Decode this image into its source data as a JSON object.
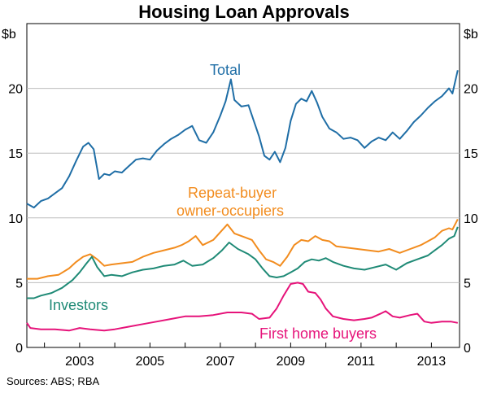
{
  "chart_data": {
    "type": "line",
    "title": "Housing Loan Approvals",
    "unit_left": "$b",
    "unit_right": "$b",
    "ylim": [
      0,
      25
    ],
    "yticks": [
      0,
      5,
      10,
      15,
      20
    ],
    "xlim": [
      2001.5,
      2013.8
    ],
    "xticks": [
      2003,
      2005,
      2007,
      2009,
      2011,
      2013
    ],
    "grid": true,
    "series": [
      {
        "name": "Total",
        "color": "#1f6ea6",
        "points": [
          [
            2001.5,
            11.1
          ],
          [
            2001.7,
            10.8
          ],
          [
            2001.9,
            11.3
          ],
          [
            2002.1,
            11.5
          ],
          [
            2002.3,
            11.9
          ],
          [
            2002.5,
            12.3
          ],
          [
            2002.7,
            13.2
          ],
          [
            2002.9,
            14.4
          ],
          [
            2003.1,
            15.5
          ],
          [
            2003.25,
            15.8
          ],
          [
            2003.4,
            15.3
          ],
          [
            2003.55,
            13.0
          ],
          [
            2003.7,
            13.4
          ],
          [
            2003.85,
            13.3
          ],
          [
            2004.0,
            13.6
          ],
          [
            2004.2,
            13.5
          ],
          [
            2004.4,
            14.0
          ],
          [
            2004.6,
            14.5
          ],
          [
            2004.8,
            14.6
          ],
          [
            2005.0,
            14.5
          ],
          [
            2005.2,
            15.2
          ],
          [
            2005.4,
            15.7
          ],
          [
            2005.6,
            16.1
          ],
          [
            2005.8,
            16.4
          ],
          [
            2006.0,
            16.8
          ],
          [
            2006.2,
            17.1
          ],
          [
            2006.4,
            16.0
          ],
          [
            2006.6,
            15.8
          ],
          [
            2006.8,
            16.6
          ],
          [
            2007.0,
            17.9
          ],
          [
            2007.15,
            19.0
          ],
          [
            2007.3,
            20.7
          ],
          [
            2007.4,
            19.1
          ],
          [
            2007.6,
            18.6
          ],
          [
            2007.8,
            18.7
          ],
          [
            2007.95,
            17.5
          ],
          [
            2008.1,
            16.3
          ],
          [
            2008.25,
            14.8
          ],
          [
            2008.4,
            14.5
          ],
          [
            2008.55,
            15.1
          ],
          [
            2008.7,
            14.3
          ],
          [
            2008.85,
            15.4
          ],
          [
            2009.0,
            17.5
          ],
          [
            2009.15,
            18.8
          ],
          [
            2009.3,
            19.2
          ],
          [
            2009.45,
            19.0
          ],
          [
            2009.6,
            19.8
          ],
          [
            2009.75,
            18.9
          ],
          [
            2009.9,
            17.8
          ],
          [
            2010.1,
            16.9
          ],
          [
            2010.3,
            16.6
          ],
          [
            2010.5,
            16.1
          ],
          [
            2010.7,
            16.2
          ],
          [
            2010.9,
            16.0
          ],
          [
            2011.1,
            15.4
          ],
          [
            2011.3,
            15.9
          ],
          [
            2011.5,
            16.2
          ],
          [
            2011.7,
            16.0
          ],
          [
            2011.9,
            16.6
          ],
          [
            2012.1,
            16.1
          ],
          [
            2012.3,
            16.7
          ],
          [
            2012.5,
            17.4
          ],
          [
            2012.7,
            17.9
          ],
          [
            2012.9,
            18.5
          ],
          [
            2013.1,
            19.0
          ],
          [
            2013.3,
            19.4
          ],
          [
            2013.5,
            20.0
          ],
          [
            2013.6,
            19.6
          ],
          [
            2013.75,
            21.4
          ]
        ]
      },
      {
        "name": "Repeat-buyer owner-occupiers",
        "color": "#f28c1e",
        "points": [
          [
            2001.5,
            5.3
          ],
          [
            2001.8,
            5.3
          ],
          [
            2002.1,
            5.5
          ],
          [
            2002.4,
            5.6
          ],
          [
            2002.7,
            6.1
          ],
          [
            2002.9,
            6.6
          ],
          [
            2003.1,
            7.0
          ],
          [
            2003.3,
            7.2
          ],
          [
            2003.5,
            6.8
          ],
          [
            2003.7,
            6.3
          ],
          [
            2003.9,
            6.4
          ],
          [
            2004.2,
            6.5
          ],
          [
            2004.5,
            6.6
          ],
          [
            2004.8,
            7.0
          ],
          [
            2005.1,
            7.3
          ],
          [
            2005.4,
            7.5
          ],
          [
            2005.7,
            7.7
          ],
          [
            2005.9,
            7.9
          ],
          [
            2006.1,
            8.2
          ],
          [
            2006.3,
            8.6
          ],
          [
            2006.5,
            7.9
          ],
          [
            2006.8,
            8.3
          ],
          [
            2007.0,
            8.9
          ],
          [
            2007.2,
            9.5
          ],
          [
            2007.4,
            8.8
          ],
          [
            2007.7,
            8.5
          ],
          [
            2007.9,
            8.3
          ],
          [
            2008.1,
            7.5
          ],
          [
            2008.3,
            6.8
          ],
          [
            2008.5,
            6.6
          ],
          [
            2008.7,
            6.3
          ],
          [
            2008.9,
            7.0
          ],
          [
            2009.1,
            7.9
          ],
          [
            2009.3,
            8.3
          ],
          [
            2009.5,
            8.2
          ],
          [
            2009.7,
            8.6
          ],
          [
            2009.9,
            8.3
          ],
          [
            2010.1,
            8.2
          ],
          [
            2010.3,
            7.8
          ],
          [
            2010.6,
            7.7
          ],
          [
            2010.9,
            7.6
          ],
          [
            2011.2,
            7.5
          ],
          [
            2011.5,
            7.4
          ],
          [
            2011.8,
            7.6
          ],
          [
            2012.1,
            7.3
          ],
          [
            2012.4,
            7.6
          ],
          [
            2012.7,
            7.9
          ],
          [
            2012.9,
            8.2
          ],
          [
            2013.1,
            8.5
          ],
          [
            2013.3,
            9.0
          ],
          [
            2013.5,
            9.2
          ],
          [
            2013.6,
            9.1
          ],
          [
            2013.75,
            9.9
          ]
        ]
      },
      {
        "name": "Investors",
        "color": "#1f8a76",
        "points": [
          [
            2001.5,
            3.8
          ],
          [
            2001.7,
            3.8
          ],
          [
            2001.9,
            4.0
          ],
          [
            2002.2,
            4.2
          ],
          [
            2002.5,
            4.6
          ],
          [
            2002.8,
            5.2
          ],
          [
            2003.0,
            5.8
          ],
          [
            2003.2,
            6.5
          ],
          [
            2003.35,
            7.0
          ],
          [
            2003.5,
            6.2
          ],
          [
            2003.7,
            5.5
          ],
          [
            2003.9,
            5.6
          ],
          [
            2004.2,
            5.5
          ],
          [
            2004.5,
            5.8
          ],
          [
            2004.8,
            6.0
          ],
          [
            2005.1,
            6.1
          ],
          [
            2005.4,
            6.3
          ],
          [
            2005.7,
            6.4
          ],
          [
            2005.95,
            6.7
          ],
          [
            2006.2,
            6.3
          ],
          [
            2006.5,
            6.4
          ],
          [
            2006.8,
            6.9
          ],
          [
            2007.05,
            7.5
          ],
          [
            2007.25,
            8.1
          ],
          [
            2007.5,
            7.6
          ],
          [
            2007.8,
            7.2
          ],
          [
            2008.0,
            6.8
          ],
          [
            2008.2,
            6.1
          ],
          [
            2008.4,
            5.5
          ],
          [
            2008.6,
            5.4
          ],
          [
            2008.8,
            5.5
          ],
          [
            2009.0,
            5.8
          ],
          [
            2009.2,
            6.1
          ],
          [
            2009.4,
            6.6
          ],
          [
            2009.6,
            6.8
          ],
          [
            2009.8,
            6.7
          ],
          [
            2010.0,
            6.9
          ],
          [
            2010.2,
            6.6
          ],
          [
            2010.5,
            6.3
          ],
          [
            2010.8,
            6.1
          ],
          [
            2011.1,
            6.0
          ],
          [
            2011.4,
            6.2
          ],
          [
            2011.7,
            6.4
          ],
          [
            2012.0,
            6.0
          ],
          [
            2012.3,
            6.5
          ],
          [
            2012.6,
            6.8
          ],
          [
            2012.9,
            7.1
          ],
          [
            2013.1,
            7.5
          ],
          [
            2013.3,
            7.9
          ],
          [
            2013.5,
            8.4
          ],
          [
            2013.65,
            8.6
          ],
          [
            2013.75,
            9.3
          ]
        ]
      },
      {
        "name": "First home buyers",
        "color": "#e6137a",
        "points": [
          [
            2001.5,
            1.9
          ],
          [
            2001.6,
            1.5
          ],
          [
            2001.9,
            1.4
          ],
          [
            2002.3,
            1.4
          ],
          [
            2002.7,
            1.3
          ],
          [
            2003.0,
            1.5
          ],
          [
            2003.3,
            1.4
          ],
          [
            2003.7,
            1.3
          ],
          [
            2004.0,
            1.4
          ],
          [
            2004.4,
            1.6
          ],
          [
            2004.8,
            1.8
          ],
          [
            2005.2,
            2.0
          ],
          [
            2005.6,
            2.2
          ],
          [
            2006.0,
            2.4
          ],
          [
            2006.4,
            2.4
          ],
          [
            2006.8,
            2.5
          ],
          [
            2007.2,
            2.7
          ],
          [
            2007.6,
            2.7
          ],
          [
            2007.9,
            2.6
          ],
          [
            2008.1,
            2.2
          ],
          [
            2008.4,
            2.3
          ],
          [
            2008.6,
            3.0
          ],
          [
            2008.8,
            4.0
          ],
          [
            2009.0,
            4.9
          ],
          [
            2009.2,
            5.0
          ],
          [
            2009.35,
            4.9
          ],
          [
            2009.5,
            4.3
          ],
          [
            2009.7,
            4.2
          ],
          [
            2009.85,
            3.7
          ],
          [
            2010.0,
            3.0
          ],
          [
            2010.2,
            2.4
          ],
          [
            2010.5,
            2.2
          ],
          [
            2010.8,
            2.1
          ],
          [
            2011.1,
            2.2
          ],
          [
            2011.3,
            2.3
          ],
          [
            2011.55,
            2.6
          ],
          [
            2011.7,
            2.8
          ],
          [
            2011.9,
            2.4
          ],
          [
            2012.1,
            2.3
          ],
          [
            2012.4,
            2.5
          ],
          [
            2012.6,
            2.6
          ],
          [
            2012.8,
            2.0
          ],
          [
            2013.0,
            1.9
          ],
          [
            2013.3,
            2.0
          ],
          [
            2013.55,
            2.0
          ],
          [
            2013.75,
            1.9
          ]
        ]
      }
    ]
  },
  "labels": {
    "total": "Total",
    "repeat_line1": "Repeat-buyer",
    "repeat_line2": "owner-occupiers",
    "investors": "Investors",
    "first_home": "First home buyers"
  },
  "source": "Sources: ABS; RBA"
}
